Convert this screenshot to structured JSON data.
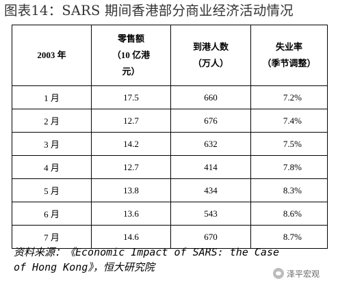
{
  "title": "图表14：SARS 期间香港部分商业经济活动情况",
  "table": {
    "headers": [
      {
        "lines": [
          "2003 年"
        ]
      },
      {
        "lines": [
          "零售额",
          "（10 亿港",
          "元）"
        ]
      },
      {
        "lines": [
          "到港人数",
          "（万人）"
        ]
      },
      {
        "lines": [
          "失业率",
          "（季节调整）"
        ]
      }
    ],
    "rows": [
      {
        "month": "1 月",
        "retail": "17.5",
        "arrivals": "660",
        "unemployment": "7.2%"
      },
      {
        "month": "2 月",
        "retail": "12.7",
        "arrivals": "676",
        "unemployment": "7.4%"
      },
      {
        "month": "3 月",
        "retail": "14.2",
        "arrivals": "632",
        "unemployment": "7.5%"
      },
      {
        "month": "4 月",
        "retail": "12.7",
        "arrivals": "414",
        "unemployment": "7.8%"
      },
      {
        "month": "5 月",
        "retail": "13.8",
        "arrivals": "434",
        "unemployment": "8.3%"
      },
      {
        "month": "6 月",
        "retail": "13.6",
        "arrivals": "543",
        "unemployment": "8.6%"
      },
      {
        "month": "7 月",
        "retail": "14.6",
        "arrivals": "670",
        "unemployment": "8.7%"
      }
    ]
  },
  "source": {
    "line1": "资料来源：《Economic Impact of SARS: the Case",
    "line2": "of Hong Kong》，恒大研究院"
  },
  "watermark": {
    "text": "泽平宏观"
  }
}
